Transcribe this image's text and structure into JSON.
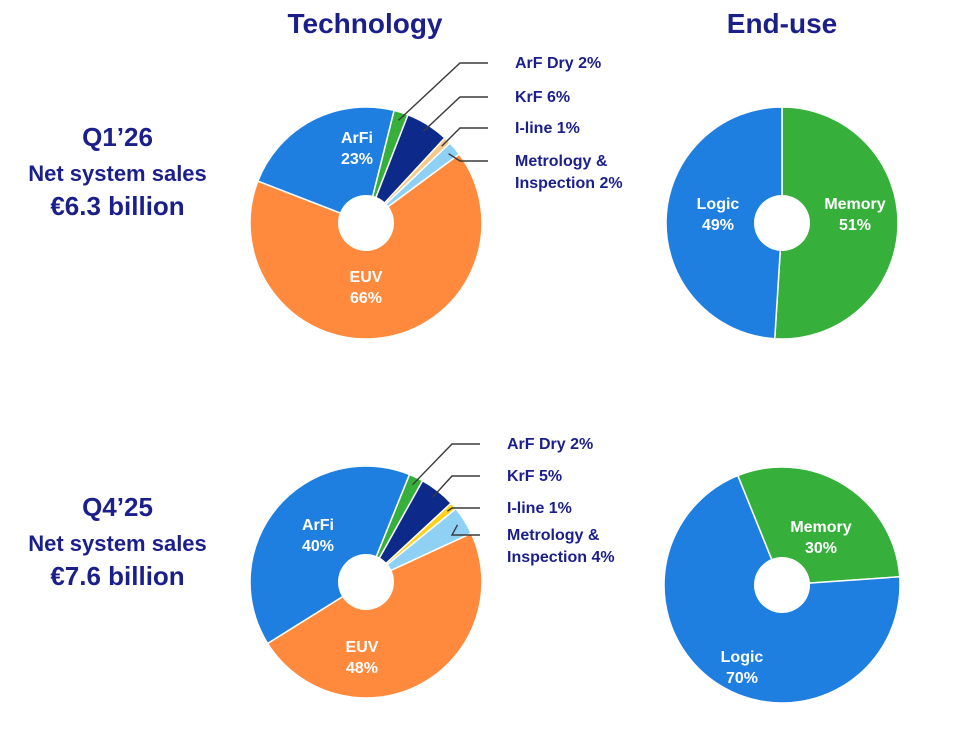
{
  "header": {
    "technology": "Technology",
    "end_use": "End-use"
  },
  "colors": {
    "EUV": "#ff8a3d",
    "ArFi": "#1e7fe0",
    "ArF Dry": "#36b03a",
    "KrF": "#0d2a8a",
    "I-line q1": "#f5c98a",
    "I-line q4": "#ffd21a",
    "Metrology & Inspection": "#8ed1f5",
    "Logic": "#1e7fe0",
    "Memory": "#36b03a",
    "label_dark": "#1b1f8a"
  },
  "periods": [
    {
      "label": "Q1’26",
      "subtitle": "Net system sales",
      "value": "€6.3 billion"
    },
    {
      "label": "Q4’25",
      "subtitle": "Net system sales",
      "value": "€7.6 billion"
    }
  ],
  "chart_data": [
    {
      "type": "pie",
      "variant": "donut",
      "period": "Q1’26",
      "group": "Technology",
      "slices": [
        {
          "label": "EUV",
          "value": 66,
          "text": "EUV",
          "pct": "66%"
        },
        {
          "label": "ArFi",
          "value": 23,
          "text": "ArFi",
          "pct": "23%"
        },
        {
          "label": "ArF Dry",
          "value": 2,
          "text": "ArF Dry 2%"
        },
        {
          "label": "KrF",
          "value": 6,
          "text": "KrF 6%"
        },
        {
          "label": "I-line",
          "value": 1,
          "text": "I-line 1%"
        },
        {
          "label": "Metrology & Inspection",
          "value": 2,
          "text": "Metrology &",
          "text2": "Inspection 2%"
        }
      ]
    },
    {
      "type": "pie",
      "variant": "donut",
      "period": "Q1’26",
      "group": "End-use",
      "slices": [
        {
          "label": "Memory",
          "value": 51,
          "text": "Memory",
          "pct": "51%"
        },
        {
          "label": "Logic",
          "value": 49,
          "text": "Logic",
          "pct": "49%"
        }
      ]
    },
    {
      "type": "pie",
      "variant": "donut",
      "period": "Q4’25",
      "group": "Technology",
      "slices": [
        {
          "label": "EUV",
          "value": 48,
          "text": "EUV",
          "pct": "48%"
        },
        {
          "label": "ArFi",
          "value": 40,
          "text": "ArFi",
          "pct": "40%"
        },
        {
          "label": "ArF Dry",
          "value": 2,
          "text": "ArF Dry 2%"
        },
        {
          "label": "KrF",
          "value": 5,
          "text": "KrF 5%"
        },
        {
          "label": "I-line",
          "value": 1,
          "text": "I-line 1%"
        },
        {
          "label": "Metrology & Inspection",
          "value": 4,
          "text": "Metrology &",
          "text2": "Inspection 4%"
        }
      ]
    },
    {
      "type": "pie",
      "variant": "donut",
      "period": "Q4’25",
      "group": "End-use",
      "slices": [
        {
          "label": "Memory",
          "value": 30,
          "text": "Memory",
          "pct": "30%"
        },
        {
          "label": "Logic",
          "value": 70,
          "text": "Logic",
          "pct": "70%"
        }
      ]
    }
  ]
}
